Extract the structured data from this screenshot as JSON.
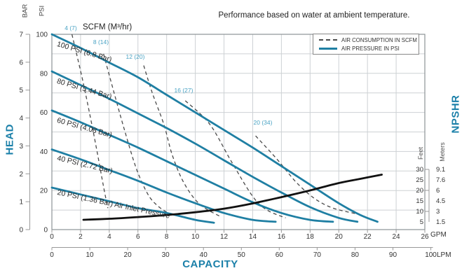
{
  "page": {
    "title": "Performance based on water at ambient temperature."
  },
  "legend": [
    {
      "label": "AIR CONSUMPTION IN SCFM",
      "style": "dashed"
    },
    {
      "label": "AIR PRESSURE IN PSI",
      "style": "solid"
    }
  ],
  "axis_titles": {
    "head": "HEAD",
    "capacity": "CAPACITY",
    "npshr": "NPSHR",
    "bar": "BAR",
    "psi": "PSI",
    "scfm": "SCFM (M³/hr)",
    "gpm_unit": "GPM",
    "lpm_unit": "LPM",
    "feet": "Feet",
    "meters": "Meters"
  },
  "colors": {
    "curve_teal": "#1f7fa3",
    "scfm_label_teal": "#4aa3c4",
    "axis_title_teal": "#1b80a9",
    "dashed_gray": "#4a4a4a",
    "npshr_black": "#111111",
    "grid": "#cdd1d4",
    "border": "#8d9296",
    "text": "#333333"
  },
  "chart_data": {
    "type": "line",
    "title": "Performance based on water at ambient temperature.",
    "x_axis": {
      "label": "CAPACITY",
      "primary_unit": "GPM",
      "primary_range": [
        0,
        26
      ],
      "primary_ticks": [
        0,
        2,
        4,
        6,
        8,
        10,
        12,
        14,
        16,
        18,
        20,
        22,
        24,
        26
      ],
      "secondary_unit": "LPM",
      "secondary_range": [
        0,
        100
      ],
      "secondary_ticks": [
        0,
        10,
        20,
        30,
        40,
        50,
        60,
        70,
        80,
        90,
        100
      ],
      "grid": "every 2 GPM"
    },
    "y_axis_left": {
      "label": "HEAD",
      "primary_unit": "PSI",
      "primary_range": [
        0,
        100
      ],
      "primary_ticks": [
        100,
        80,
        60,
        40,
        20,
        0
      ],
      "secondary_unit": "BAR",
      "secondary_range": [
        0,
        7
      ],
      "secondary_ticks": [
        7,
        6,
        5,
        4,
        3,
        2,
        1,
        0
      ],
      "grid": "every 10 PSI"
    },
    "y_axis_right": {
      "label": "NPSHR",
      "feet_unit": "Feet",
      "feet_ticks": [
        30,
        25,
        20,
        15,
        10,
        5
      ],
      "meters_unit": "Meters",
      "meters_ticks": [
        "9.1",
        "7.6",
        "6",
        "4.5",
        "3",
        "1.5"
      ]
    },
    "pressure_curves_psi_vs_gpm": [
      {
        "label": "100 PSI (6.8 Bar)",
        "points": [
          [
            0,
            100
          ],
          [
            2,
            93
          ],
          [
            4,
            85.5
          ],
          [
            6,
            78
          ],
          [
            8,
            69
          ],
          [
            10,
            60
          ],
          [
            12,
            51
          ],
          [
            14,
            42
          ],
          [
            16,
            32.5
          ],
          [
            18,
            23
          ],
          [
            20,
            13.5
          ],
          [
            21.5,
            7.5
          ],
          [
            22.7,
            4
          ]
        ]
      },
      {
        "label": "80 PSI (5.44 Bar)",
        "points": [
          [
            0,
            81
          ],
          [
            2,
            74
          ],
          [
            4,
            67
          ],
          [
            6,
            59.5
          ],
          [
            8,
            52
          ],
          [
            10,
            44
          ],
          [
            12,
            35.5
          ],
          [
            14,
            27
          ],
          [
            16,
            19
          ],
          [
            18,
            11.5
          ],
          [
            20,
            6
          ],
          [
            21.3,
            4
          ]
        ]
      },
      {
        "label": "60 PSI (4.08 Bar)",
        "points": [
          [
            0,
            61
          ],
          [
            2,
            55
          ],
          [
            4,
            48.5
          ],
          [
            6,
            42
          ],
          [
            8,
            35
          ],
          [
            10,
            28
          ],
          [
            12,
            21
          ],
          [
            14,
            14
          ],
          [
            16,
            8.5
          ],
          [
            18,
            5
          ],
          [
            19.6,
            4
          ]
        ]
      },
      {
        "label": "40 PSI (2.72 Bar)",
        "points": [
          [
            0,
            41
          ],
          [
            2,
            36
          ],
          [
            4,
            30.5
          ],
          [
            6,
            25
          ],
          [
            8,
            19
          ],
          [
            10,
            13.5
          ],
          [
            12,
            8.5
          ],
          [
            14,
            5
          ],
          [
            15.6,
            4
          ]
        ]
      },
      {
        "label": "20 PSI (1.36 Bar) Air Inlet Pressure",
        "points": [
          [
            0,
            21.5
          ],
          [
            2,
            18
          ],
          [
            4,
            14.5
          ],
          [
            6,
            11
          ],
          [
            8,
            8.5
          ],
          [
            10,
            5
          ],
          [
            11.3,
            3.5
          ]
        ]
      }
    ],
    "air_consumption_curves_scfm": [
      {
        "label": "4 (7)",
        "points": [
          [
            1.4,
            100
          ],
          [
            2.1,
            78
          ],
          [
            2.7,
            57
          ],
          [
            3.2,
            38
          ],
          [
            3.6,
            22
          ],
          [
            3.9,
            11
          ]
        ]
      },
      {
        "label": "8 (14)",
        "points": [
          [
            3.6,
            90
          ],
          [
            4.3,
            71
          ],
          [
            5.1,
            50
          ],
          [
            5.9,
            31
          ],
          [
            6.7,
            18
          ],
          [
            7.4,
            12
          ],
          [
            8.1,
            8.5
          ]
        ]
      },
      {
        "label": "12 (20)",
        "points": [
          [
            6.4,
            84
          ],
          [
            7,
            70
          ],
          [
            7.8,
            54
          ],
          [
            8.4,
            38
          ],
          [
            9.2,
            24
          ],
          [
            10.3,
            13
          ],
          [
            11.8,
            6.5
          ]
        ]
      },
      {
        "label": "16 (27)",
        "points": [
          [
            9.3,
            66
          ],
          [
            11,
            54
          ],
          [
            12.5,
            35
          ],
          [
            14,
            17
          ],
          [
            15,
            10
          ],
          [
            16.3,
            6
          ]
        ]
      },
      {
        "label": "20 (34)",
        "points": [
          [
            14.2,
            48
          ],
          [
            15.7,
            36
          ],
          [
            17,
            24.5
          ],
          [
            18.3,
            16
          ],
          [
            19.6,
            11
          ],
          [
            21.3,
            8
          ]
        ]
      }
    ],
    "npshr_curve_feet_vs_gpm": {
      "label": "NPSHR",
      "points": [
        [
          2.2,
          6
        ],
        [
          4,
          6.5
        ],
        [
          6,
          7.3
        ],
        [
          8,
          8.3
        ],
        [
          10,
          9.6
        ],
        [
          12,
          11.3
        ],
        [
          14,
          13.8
        ],
        [
          16,
          16.8
        ],
        [
          18,
          20
        ],
        [
          20,
          23.5
        ],
        [
          21.5,
          25.5
        ],
        [
          23,
          27.5
        ]
      ]
    }
  }
}
